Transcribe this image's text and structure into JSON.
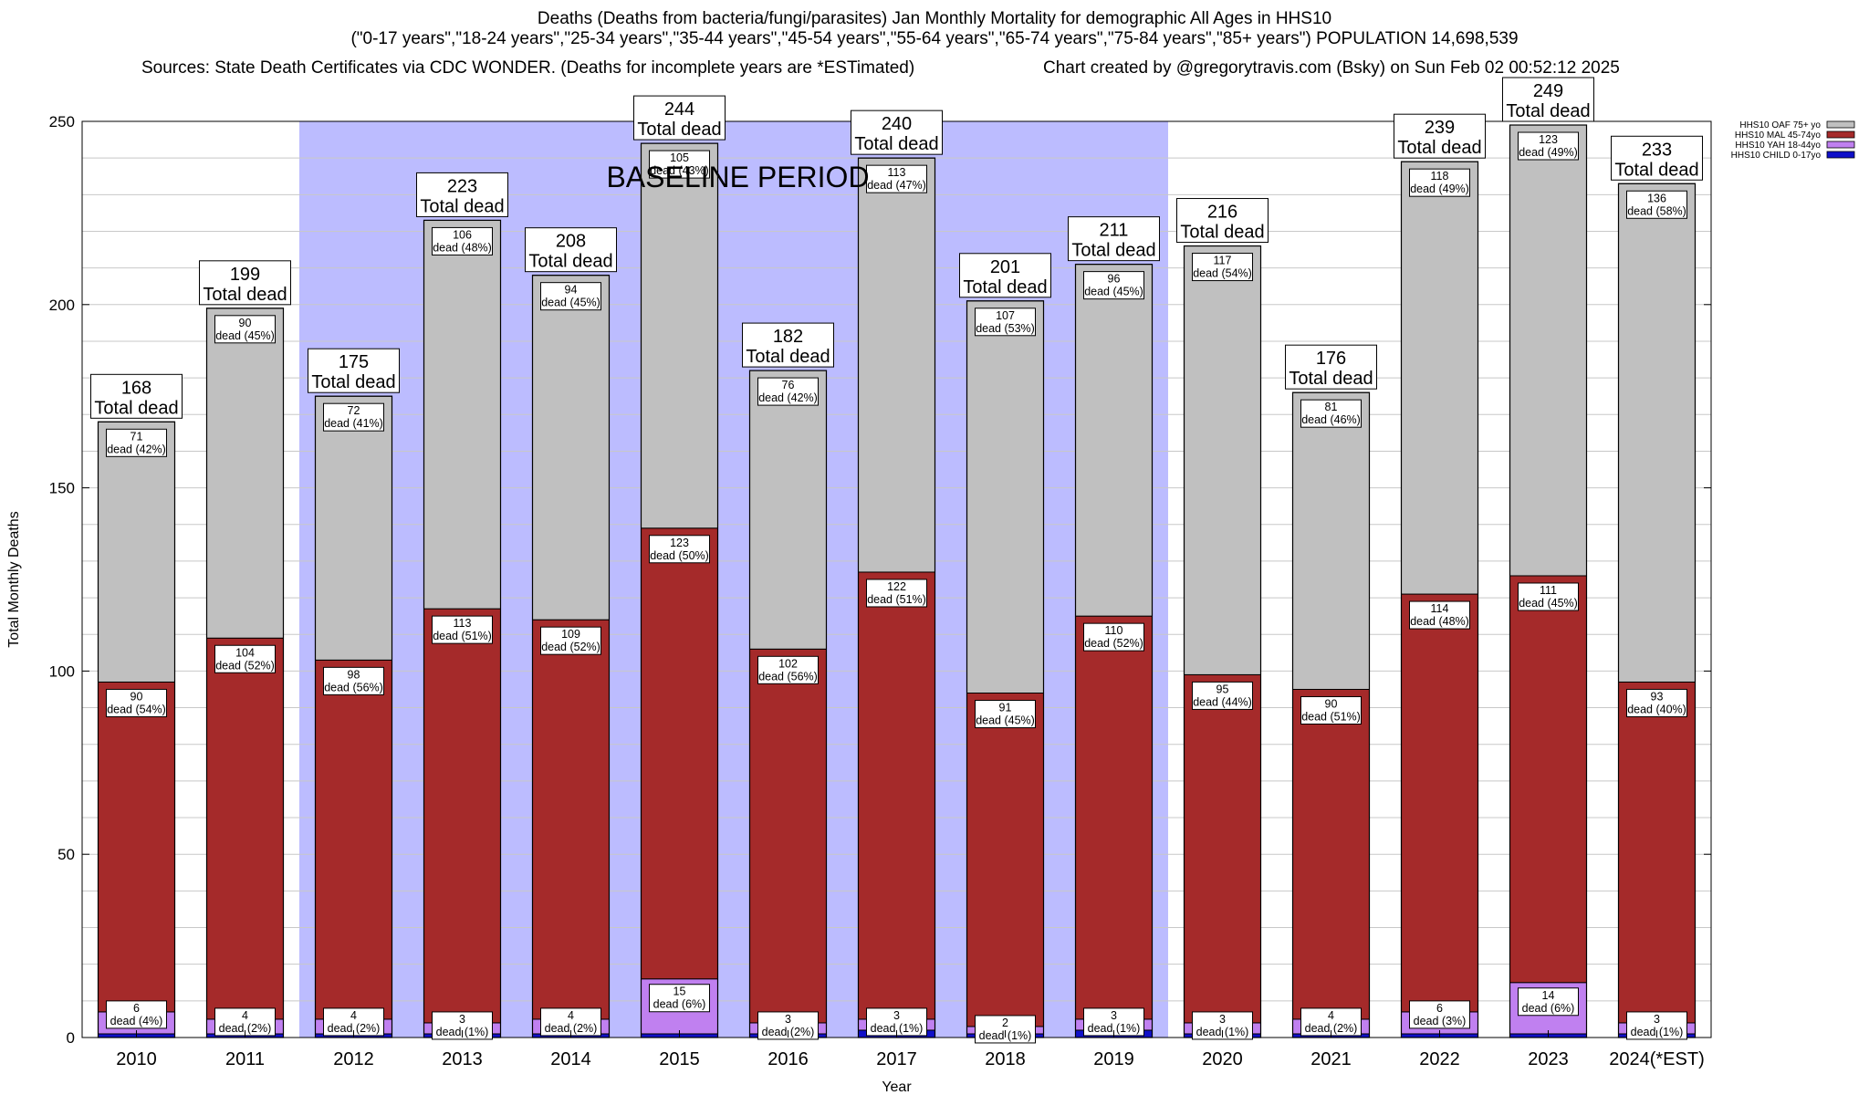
{
  "header": {
    "title_line1": "Deaths (Deaths from bacteria/fungi/parasites) Jan Monthly Mortality for demographic All Ages in HHS10",
    "title_line2": "(\"0-17 years\",\"18-24 years\",\"25-34 years\",\"35-44 years\",\"45-54 years\",\"55-64 years\",\"65-74 years\",\"75-84 years\",\"85+ years\") POPULATION 14,698,539",
    "sources": "Sources: State Death Certificates via CDC WONDER. (Deaths for incomplete years are *ESTimated)",
    "credit": "Chart created by @gregorytravis.com (Bsky) on Sun Feb 02 00:52:12 2025"
  },
  "chart_data": {
    "type": "bar",
    "stacked": true,
    "xlabel": "Year",
    "ylabel": "Total Monthly Deaths",
    "ylim": [
      0,
      250
    ],
    "yticks": [
      0,
      50,
      100,
      150,
      200,
      250
    ],
    "grid": true,
    "legend_position": "top-right",
    "baseline_label": "BASELINE PERIOD",
    "baseline_range": [
      "2012",
      "2019"
    ],
    "total_label_suffix": "Total dead",
    "dead_word": "dead",
    "categories": [
      "2010",
      "2011",
      "2012",
      "2013",
      "2014",
      "2015",
      "2016",
      "2017",
      "2018",
      "2019",
      "2020",
      "2021",
      "2022",
      "2023",
      "2024(*EST)"
    ],
    "totals": [
      168,
      199,
      175,
      223,
      208,
      244,
      182,
      240,
      201,
      211,
      216,
      176,
      239,
      249,
      233
    ],
    "series": [
      {
        "name": "HHS10 CHILD 0-17yo",
        "color": "#1010c8",
        "values": [
          1,
          1,
          1,
          1,
          1,
          1,
          1,
          2,
          1,
          2,
          1,
          1,
          1,
          1,
          1
        ]
      },
      {
        "name": "HHS10 YAH 18-44yo",
        "color": "#c080f0",
        "values": [
          6,
          4,
          4,
          3,
          4,
          15,
          3,
          3,
          2,
          3,
          3,
          4,
          6,
          14,
          3
        ],
        "pct": [
          "4%",
          "2%",
          "2%",
          "1%",
          "2%",
          "6%",
          "2%",
          "1%",
          "1%",
          "1%",
          "1%",
          "2%",
          "3%",
          "6%",
          "1%"
        ]
      },
      {
        "name": "HHS10 MAL 45-74yo",
        "color": "#a52a2a",
        "values": [
          90,
          104,
          98,
          113,
          109,
          123,
          102,
          122,
          91,
          110,
          95,
          90,
          114,
          111,
          93
        ],
        "pct": [
          "54%",
          "52%",
          "56%",
          "51%",
          "52%",
          "50%",
          "56%",
          "51%",
          "45%",
          "52%",
          "44%",
          "51%",
          "48%",
          "45%",
          "40%"
        ]
      },
      {
        "name": "HHS10 OAF 75+ yo",
        "color": "#c0c0c0",
        "values": [
          71,
          90,
          72,
          106,
          94,
          105,
          76,
          113,
          107,
          96,
          117,
          81,
          118,
          123,
          136
        ],
        "pct": [
          "42%",
          "45%",
          "41%",
          "48%",
          "45%",
          "43%",
          "42%",
          "47%",
          "53%",
          "45%",
          "54%",
          "46%",
          "49%",
          "49%",
          "58%"
        ]
      }
    ]
  }
}
